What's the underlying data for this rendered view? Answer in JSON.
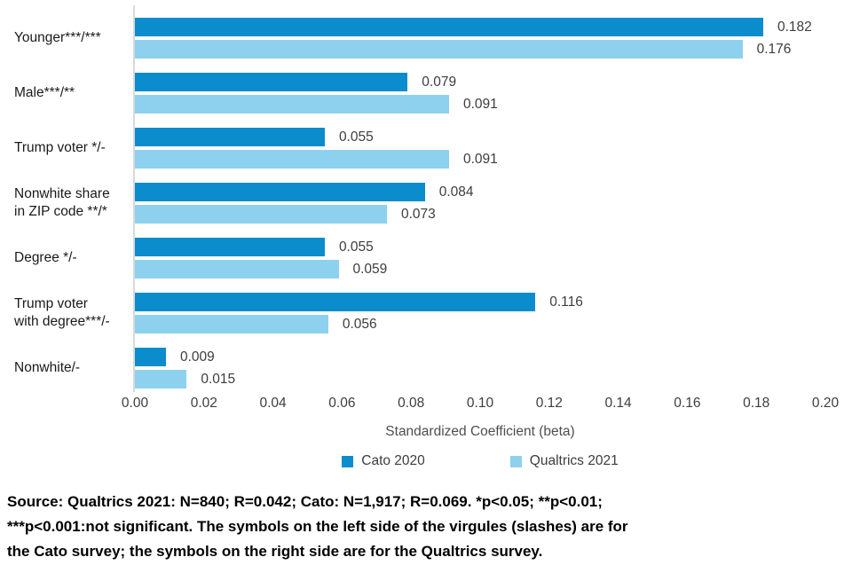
{
  "chart_data": {
    "type": "bar",
    "orientation": "horizontal",
    "title": "",
    "xlabel": "Standardized Coefficient (beta)",
    "ylabel": "",
    "xlim": [
      0,
      0.2
    ],
    "xticks": [
      "0.00",
      "0.02",
      "0.04",
      "0.06",
      "0.08",
      "0.10",
      "0.12",
      "0.14",
      "0.16",
      "0.18",
      "0.20"
    ],
    "grid": false,
    "legend_position": "bottom",
    "value_label_decimals": 3,
    "categories": [
      "Younger***/***",
      "Male***/**",
      "Trump voter */-",
      "Nonwhite share\nin ZIP code **/*",
      "Degree */-",
      "Trump voter\nwith degree***/-",
      "Nonwhite/-"
    ],
    "series": [
      {
        "name": "Cato 2020",
        "color": "#0b8ccd",
        "values": [
          0.182,
          0.079,
          0.055,
          0.084,
          0.055,
          0.116,
          0.009
        ]
      },
      {
        "name": "Qualtrics 2021",
        "color": "#8dd1ef",
        "values": [
          0.176,
          0.091,
          0.091,
          0.073,
          0.059,
          0.056,
          0.015
        ]
      }
    ]
  },
  "colors": {
    "axis_line": "#d9d9d9",
    "value_text": "#3d3d3d",
    "category_text": "#1a1a1a"
  },
  "source_note": "Source: Qualtrics 2021: N=840; R=0.042; Cato: N=1,917; R=0.069. *p<0.05; **p<0.01;\n***p<0.001:not significant. The symbols on the left side of the virgules (slashes) are for\nthe Cato survey; the symbols on the right side are for the Qualtrics survey."
}
